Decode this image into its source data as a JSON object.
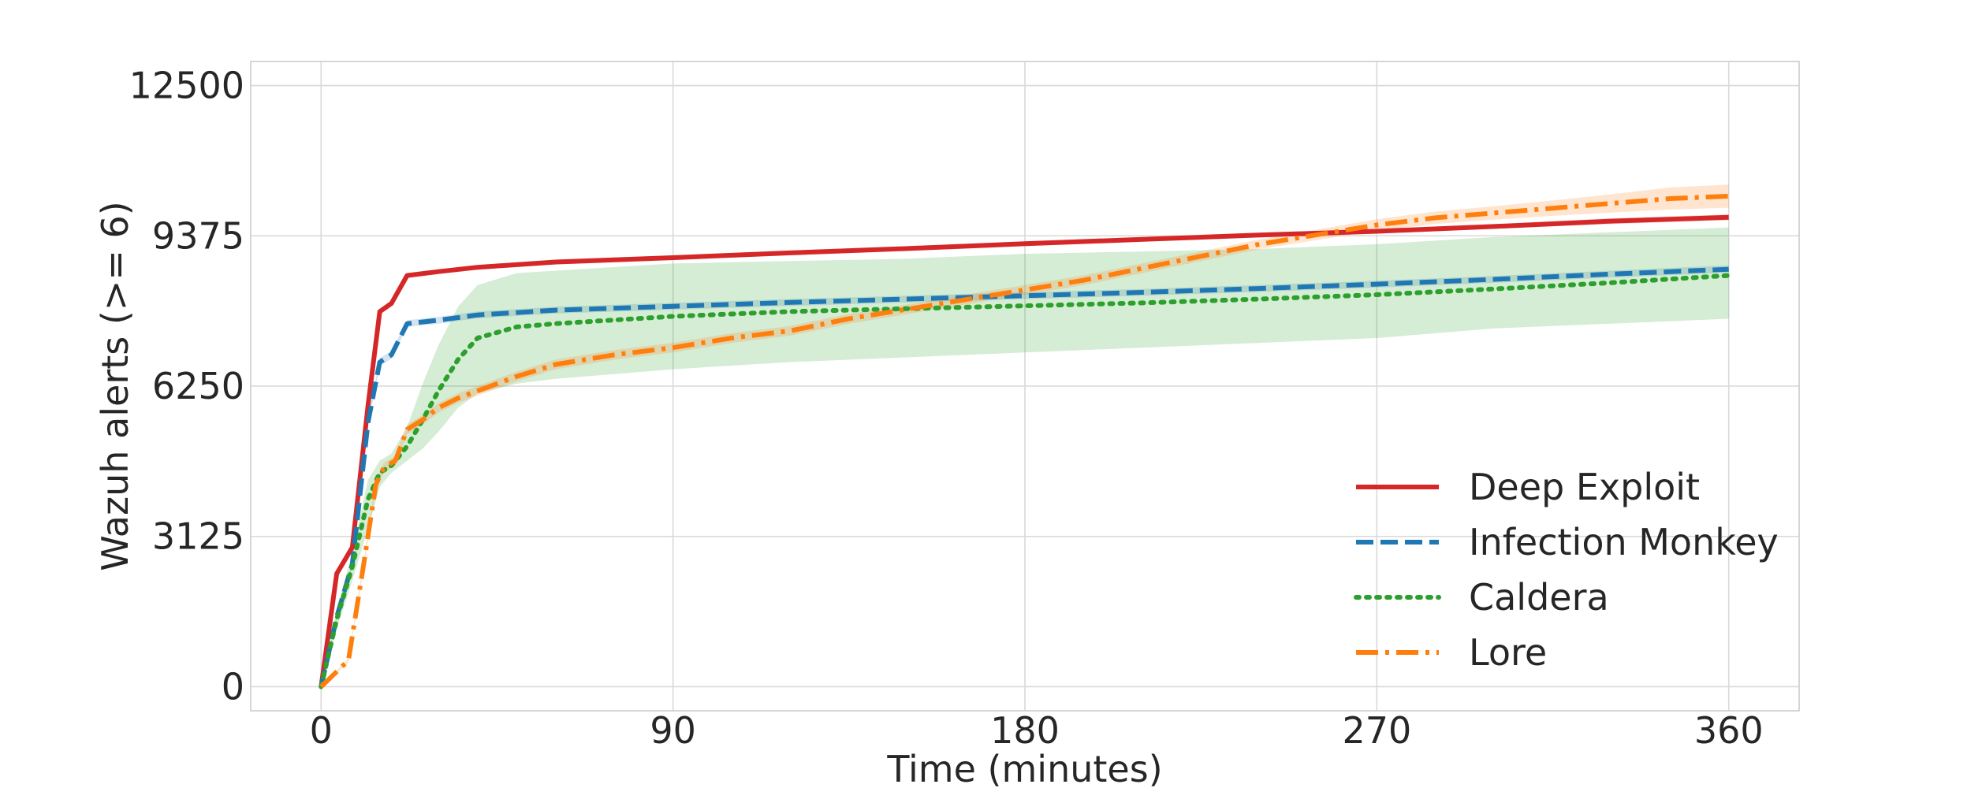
{
  "chart_data": {
    "type": "line",
    "title": "",
    "xlabel": "Time (minutes)",
    "ylabel": "Wazuh alerts (>= 6)",
    "xlim": [
      -18,
      378
    ],
    "ylim": [
      -500,
      13000
    ],
    "x_ticks": [
      0,
      90,
      180,
      270,
      360
    ],
    "y_ticks": [
      0,
      3125,
      6250,
      9375,
      12500
    ],
    "x_tick_labels": [
      "0",
      "90",
      "180",
      "270",
      "360"
    ],
    "y_tick_labels": [
      "0",
      "3125",
      "6250",
      "9375",
      "12500"
    ],
    "grid": true,
    "legend_position": "lower right",
    "series": [
      {
        "name": "Deep Exploit",
        "color": "#d62728",
        "line_style": "solid",
        "x": [
          0,
          4,
          8,
          12,
          15,
          18,
          22,
          30,
          40,
          60,
          90,
          120,
          150,
          180,
          210,
          240,
          270,
          300,
          330,
          360
        ],
        "y": [
          0,
          2350,
          2900,
          5850,
          7800,
          7970,
          8550,
          8630,
          8720,
          8830,
          8920,
          9020,
          9110,
          9210,
          9300,
          9390,
          9470,
          9570,
          9680,
          9760
        ],
        "band_low": [
          0,
          2300,
          2850,
          5780,
          7740,
          7910,
          8500,
          8580,
          8670,
          8780,
          8870,
          8970,
          9060,
          9160,
          9250,
          9340,
          9420,
          9520,
          9620,
          9700
        ],
        "band_high": [
          0,
          2400,
          2950,
          5920,
          7860,
          8030,
          8600,
          8680,
          8770,
          8880,
          8970,
          9070,
          9160,
          9260,
          9350,
          9440,
          9520,
          9620,
          9740,
          9820
        ]
      },
      {
        "name": "Infection Monkey",
        "color": "#1f77b4",
        "line_style": "dashed",
        "x": [
          0,
          4,
          8,
          12,
          15,
          18,
          22,
          30,
          40,
          60,
          90,
          120,
          150,
          180,
          210,
          240,
          270,
          300,
          330,
          360
        ],
        "y": [
          0,
          1450,
          2550,
          5500,
          6750,
          6900,
          7550,
          7620,
          7730,
          7830,
          7910,
          7990,
          8060,
          8130,
          8200,
          8280,
          8370,
          8470,
          8580,
          8680
        ],
        "band_low": [
          0,
          1400,
          2500,
          5420,
          6670,
          6820,
          7480,
          7550,
          7660,
          7760,
          7840,
          7920,
          7990,
          8060,
          8130,
          8210,
          8300,
          8400,
          8510,
          8610
        ],
        "band_high": [
          0,
          1500,
          2600,
          5580,
          6830,
          6980,
          7620,
          7690,
          7800,
          7900,
          7980,
          8060,
          8130,
          8200,
          8270,
          8350,
          8440,
          8540,
          8650,
          8760
        ]
      },
      {
        "name": "Caldera",
        "color": "#2ca02c",
        "line_style": "dotted",
        "x": [
          0,
          4,
          8,
          12,
          15,
          18,
          22,
          26,
          30,
          35,
          40,
          50,
          60,
          90,
          120,
          150,
          180,
          210,
          240,
          270,
          300,
          330,
          360
        ],
        "y": [
          0,
          1400,
          2500,
          3900,
          4450,
          4600,
          5000,
          5550,
          6150,
          6800,
          7250,
          7480,
          7550,
          7700,
          7800,
          7860,
          7920,
          7980,
          8060,
          8150,
          8270,
          8400,
          8550
        ],
        "band_low": [
          0,
          1200,
          2200,
          3300,
          4150,
          4450,
          4700,
          4950,
          5300,
          5800,
          6100,
          6300,
          6400,
          6600,
          6750,
          6850,
          6950,
          7050,
          7150,
          7250,
          7450,
          7550,
          7650
        ],
        "band_high": [
          0,
          1600,
          2800,
          4300,
          4700,
          4850,
          5400,
          6300,
          7100,
          7900,
          8350,
          8600,
          8650,
          8800,
          8850,
          8900,
          9000,
          9050,
          9100,
          9200,
          9350,
          9450,
          9550
        ]
      },
      {
        "name": "Lore",
        "color": "#ff7f0e",
        "line_style": "dashdot",
        "x": [
          0,
          7,
          11,
          14,
          16,
          19,
          22,
          26,
          30,
          35,
          40,
          50,
          60,
          75,
          90,
          105,
          120,
          135,
          150,
          165,
          180,
          195,
          210,
          225,
          240,
          255,
          270,
          285,
          300,
          315,
          330,
          345,
          360
        ],
        "y": [
          0,
          550,
          2600,
          4200,
          4550,
          4700,
          5350,
          5550,
          5800,
          6000,
          6150,
          6450,
          6700,
          6900,
          7050,
          7250,
          7400,
          7650,
          7850,
          8050,
          8250,
          8450,
          8700,
          8950,
          9200,
          9400,
          9600,
          9750,
          9850,
          9950,
          10050,
          10150,
          10200
        ],
        "band_low": [
          0,
          500,
          2500,
          4100,
          4450,
          4600,
          5250,
          5450,
          5700,
          5900,
          6050,
          6350,
          6600,
          6800,
          6950,
          7150,
          7300,
          7550,
          7750,
          7950,
          8150,
          8350,
          8600,
          8850,
          9100,
          9290,
          9480,
          9620,
          9710,
          9790,
          9860,
          9920,
          9960
        ],
        "band_high": [
          0,
          600,
          2700,
          4300,
          4650,
          4800,
          5450,
          5650,
          5900,
          6100,
          6250,
          6550,
          6800,
          7000,
          7150,
          7350,
          7500,
          7750,
          7950,
          8150,
          8350,
          8550,
          8800,
          9050,
          9300,
          9510,
          9720,
          9880,
          9990,
          10110,
          10240,
          10380,
          10440
        ]
      }
    ]
  }
}
